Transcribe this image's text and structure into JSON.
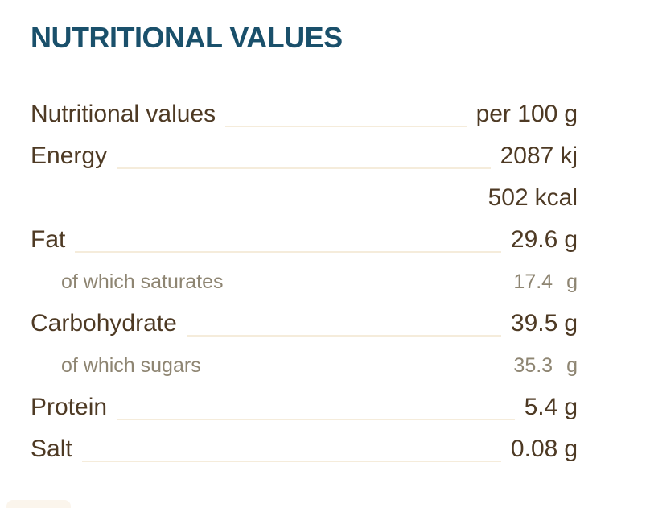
{
  "title": "NUTRITIONAL VALUES",
  "colors": {
    "title": "#1a506b",
    "text": "#4e3a24",
    "muted": "#8e8572",
    "leader": "#f5ecdb",
    "cardEdge": "#fbf5ec"
  },
  "table": {
    "rows": [
      {
        "label": "Nutritional values",
        "value": "per 100",
        "unit": "g",
        "style": "main",
        "leader": true
      },
      {
        "label": "Energy",
        "value": "2087",
        "unit": "kj",
        "style": "main",
        "leader": true
      },
      {
        "label": "",
        "value": "502",
        "unit": "kcal",
        "style": "main",
        "leader": false
      },
      {
        "label": "Fat",
        "value": "29.6",
        "unit": "g",
        "style": "main",
        "leader": true
      },
      {
        "label": "of which saturates",
        "value": "17.4",
        "unit": "g",
        "style": "sub",
        "leader": false
      },
      {
        "label": "Carbohydrate",
        "value": "39.5",
        "unit": "g",
        "style": "main",
        "leader": true
      },
      {
        "label": "of which sugars",
        "value": "35.3",
        "unit": "g",
        "style": "sub",
        "leader": false
      },
      {
        "label": "Protein",
        "value": "5.4",
        "unit": "g",
        "style": "main",
        "leader": true
      },
      {
        "label": "Salt",
        "value": "0.08",
        "unit": "g",
        "style": "main",
        "leader": true
      }
    ]
  }
}
